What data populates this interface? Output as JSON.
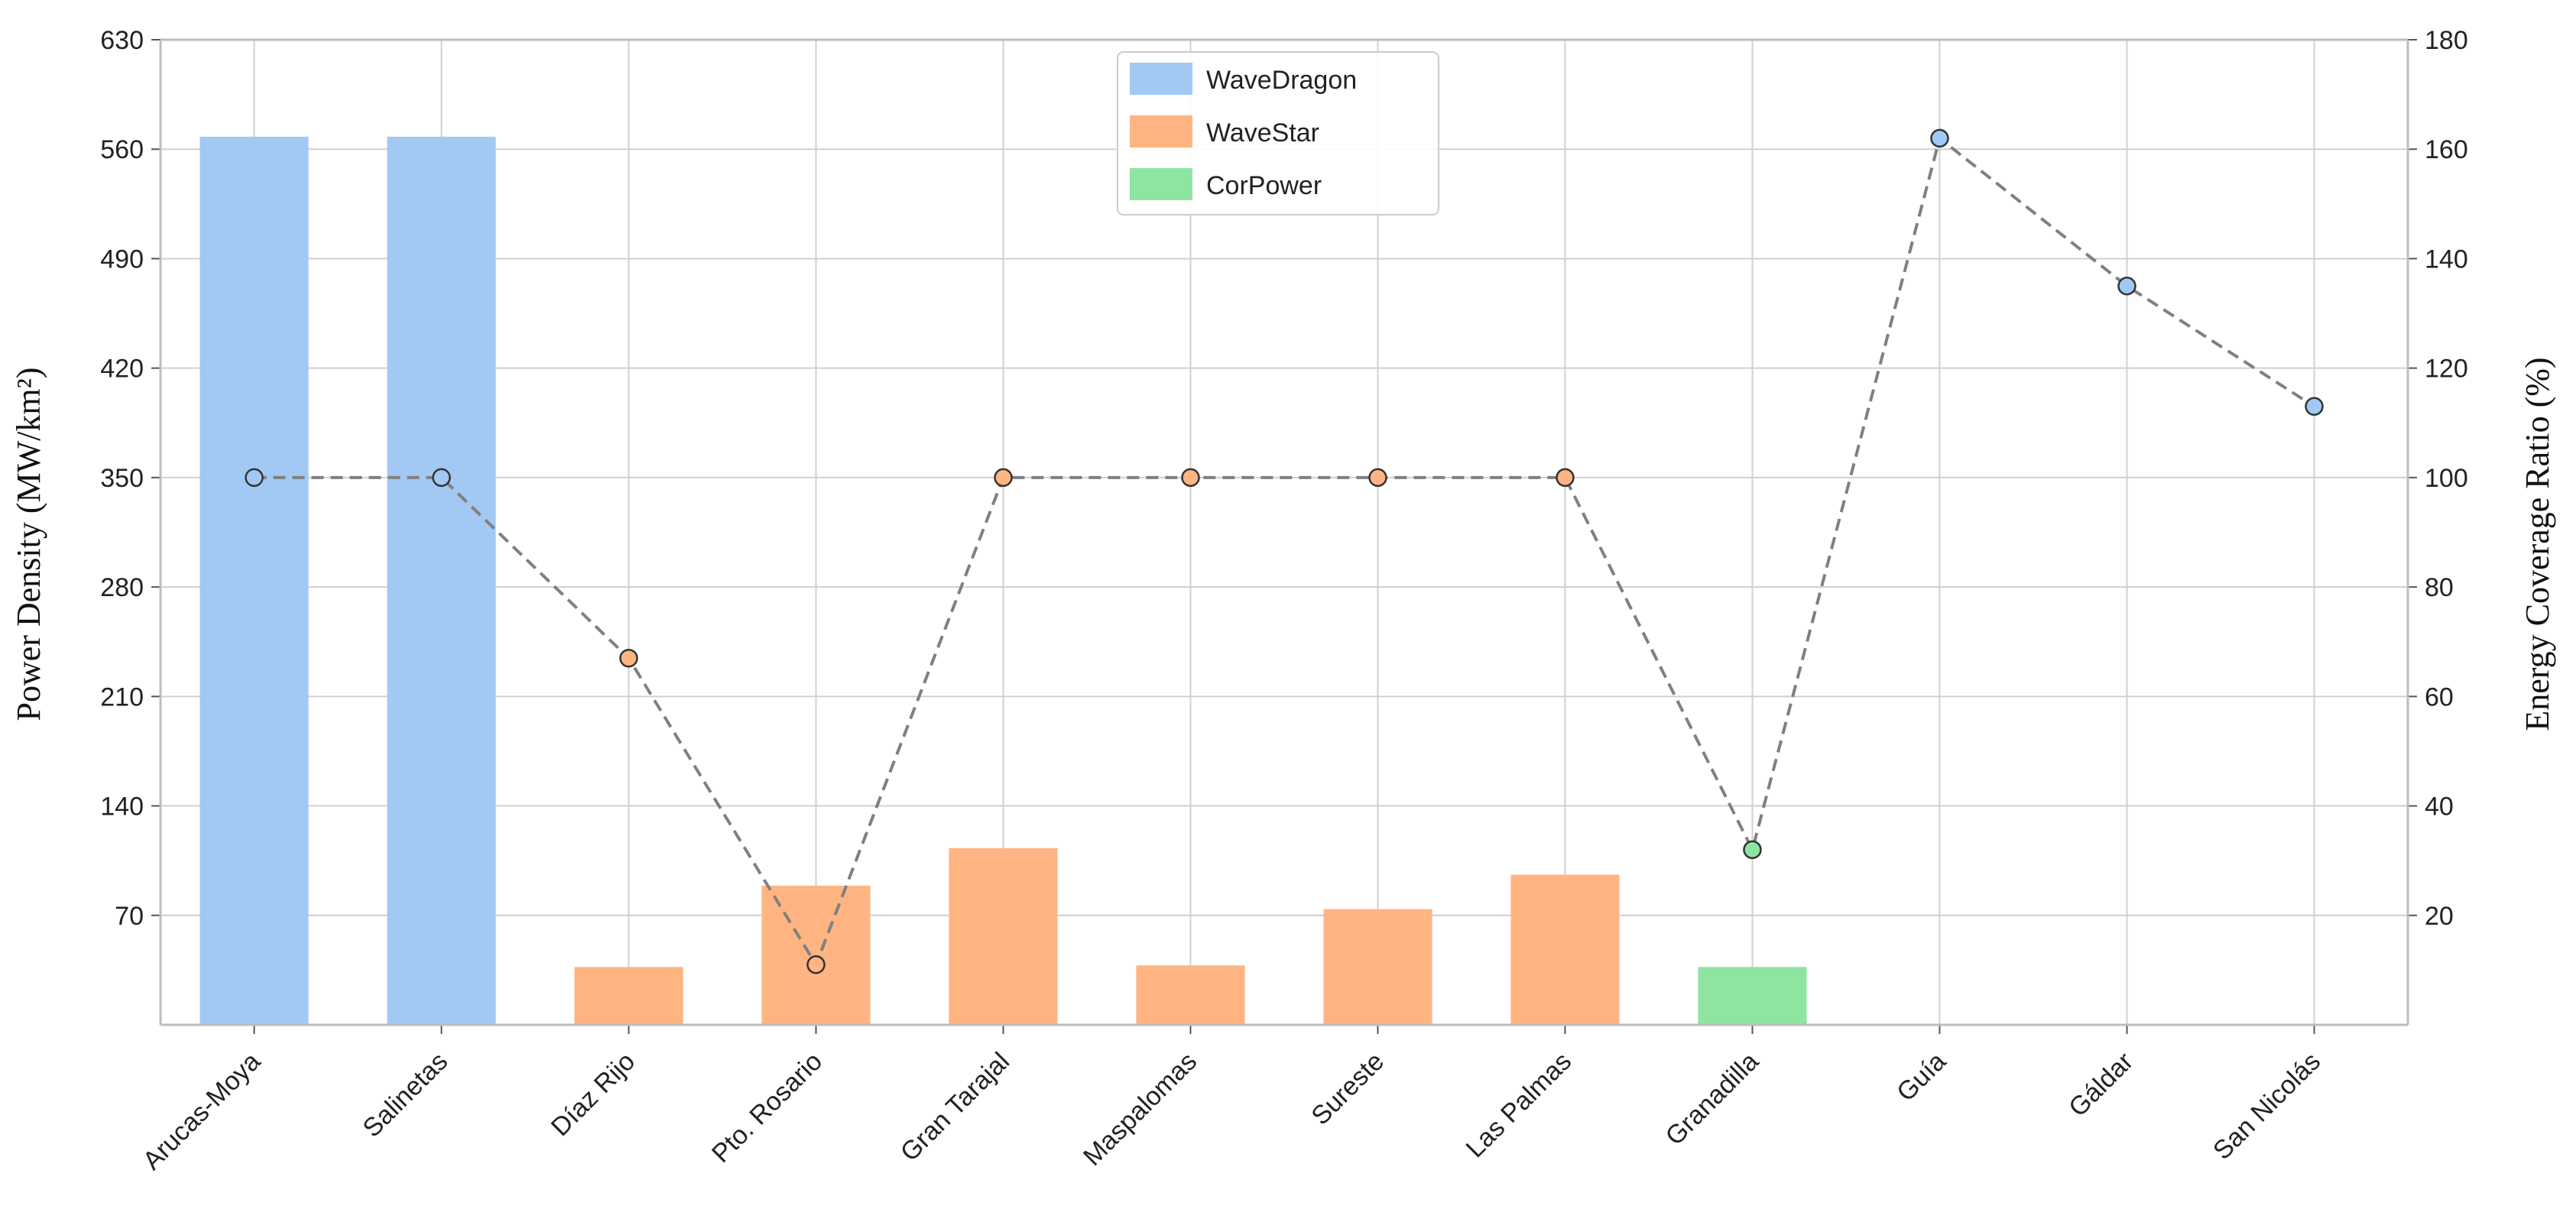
{
  "chart_data": {
    "type": "bar",
    "categories": [
      "Arucas-Moya",
      "Salinetas",
      "Díaz Rijo",
      "Pto. Rosario",
      "Gran Tarajal",
      "Maspalomas",
      "Sureste",
      "Las Palmas",
      "Granadilla",
      "Guía",
      "Gáldar",
      "San Nicolás"
    ],
    "bars": {
      "values": [
        568,
        568,
        37,
        89,
        113,
        38,
        74,
        96,
        37,
        0,
        0,
        0
      ],
      "groups": [
        "WaveDragon",
        "WaveDragon",
        "WaveStar",
        "WaveStar",
        "WaveStar",
        "WaveStar",
        "WaveStar",
        "WaveStar",
        "CorPower",
        null,
        null,
        null
      ]
    },
    "line": {
      "axis": "right",
      "values": [
        100,
        100,
        67,
        11,
        100,
        100,
        100,
        100,
        32,
        162,
        135,
        113
      ]
    },
    "legend": {
      "placement": "top-center",
      "entries": [
        {
          "name": "WaveDragon",
          "color": "#a1c9f4"
        },
        {
          "name": "WaveStar",
          "color": "#ffb482"
        },
        {
          "name": "CorPower",
          "color": "#8de5a1"
        }
      ]
    },
    "ylabel": "Power Density (MW/km²)",
    "y2label": "Energy Coverage Ratio (%)",
    "xlabel": "",
    "ylim": [
      0,
      630
    ],
    "y2lim": [
      0,
      180
    ],
    "yticks": [
      "70",
      "140",
      "210",
      "280",
      "350",
      "420",
      "490",
      "560",
      "630"
    ],
    "y2ticks": [
      "20",
      "40",
      "60",
      "80",
      "100",
      "120",
      "140",
      "160",
      "180"
    ],
    "grid": true,
    "colors": {
      "WaveDragon": "#a1c9f4",
      "WaveStar": "#ffb482",
      "CorPower": "#8de5a1",
      "line": "#808080",
      "grid": "#d0d0d0",
      "spine": "#bdbdbd"
    }
  }
}
